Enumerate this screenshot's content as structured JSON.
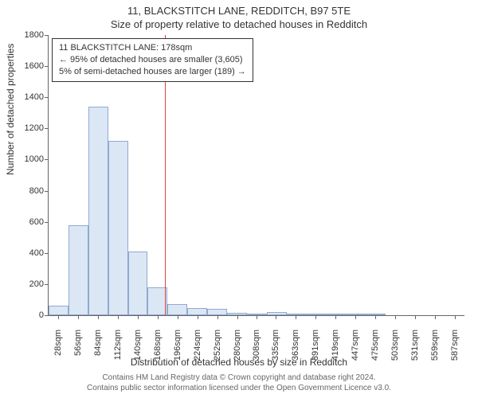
{
  "title_line1": "11, BLACKSTITCH LANE, REDDITCH, B97 5TE",
  "title_line2": "Size of property relative to detached houses in Redditch",
  "ylabel": "Number of detached properties",
  "xlabel": "Distribution of detached houses by size in Redditch",
  "footer_line1": "Contains HM Land Registry data © Crown copyright and database right 2024.",
  "footer_line2": "Contains public sector information licensed under the Open Government Licence v3.0.",
  "chart": {
    "type": "histogram",
    "bar_fill": "#dce7f5",
    "bar_border": "#8faad0",
    "ref_line_color": "#d44",
    "ref_line_x": 178,
    "background": "#ffffff",
    "axis_color": "#666666",
    "label_fontsize": 12,
    "tick_fontsize": 11,
    "ylim": [
      0,
      1800
    ],
    "yticks": [
      0,
      200,
      400,
      600,
      800,
      1000,
      1200,
      1400,
      1600,
      1800
    ],
    "xlim": [
      14,
      601
    ],
    "xticks": [
      28,
      56,
      84,
      112,
      140,
      168,
      196,
      224,
      252,
      280,
      308,
      335,
      363,
      391,
      419,
      447,
      475,
      503,
      531,
      559,
      587
    ],
    "xtick_suffix": "sqm",
    "bin_width": 28,
    "bars": [
      {
        "x0": 14,
        "count": 60
      },
      {
        "x0": 42,
        "count": 580
      },
      {
        "x0": 70,
        "count": 1340
      },
      {
        "x0": 98,
        "count": 1120
      },
      {
        "x0": 126,
        "count": 410
      },
      {
        "x0": 154,
        "count": 180
      },
      {
        "x0": 182,
        "count": 70
      },
      {
        "x0": 210,
        "count": 45
      },
      {
        "x0": 238,
        "count": 40
      },
      {
        "x0": 266,
        "count": 15
      },
      {
        "x0": 294,
        "count": 5
      },
      {
        "x0": 322,
        "count": 18
      },
      {
        "x0": 350,
        "count": 3
      },
      {
        "x0": 378,
        "count": 8
      },
      {
        "x0": 406,
        "count": 2
      },
      {
        "x0": 434,
        "count": 3
      },
      {
        "x0": 462,
        "count": 2
      }
    ]
  },
  "legend": {
    "line1": "11 BLACKSTITCH LANE: 178sqm",
    "line2": "← 95% of detached houses are smaller (3,605)",
    "line3": "5% of semi-detached houses are larger (189) →"
  }
}
